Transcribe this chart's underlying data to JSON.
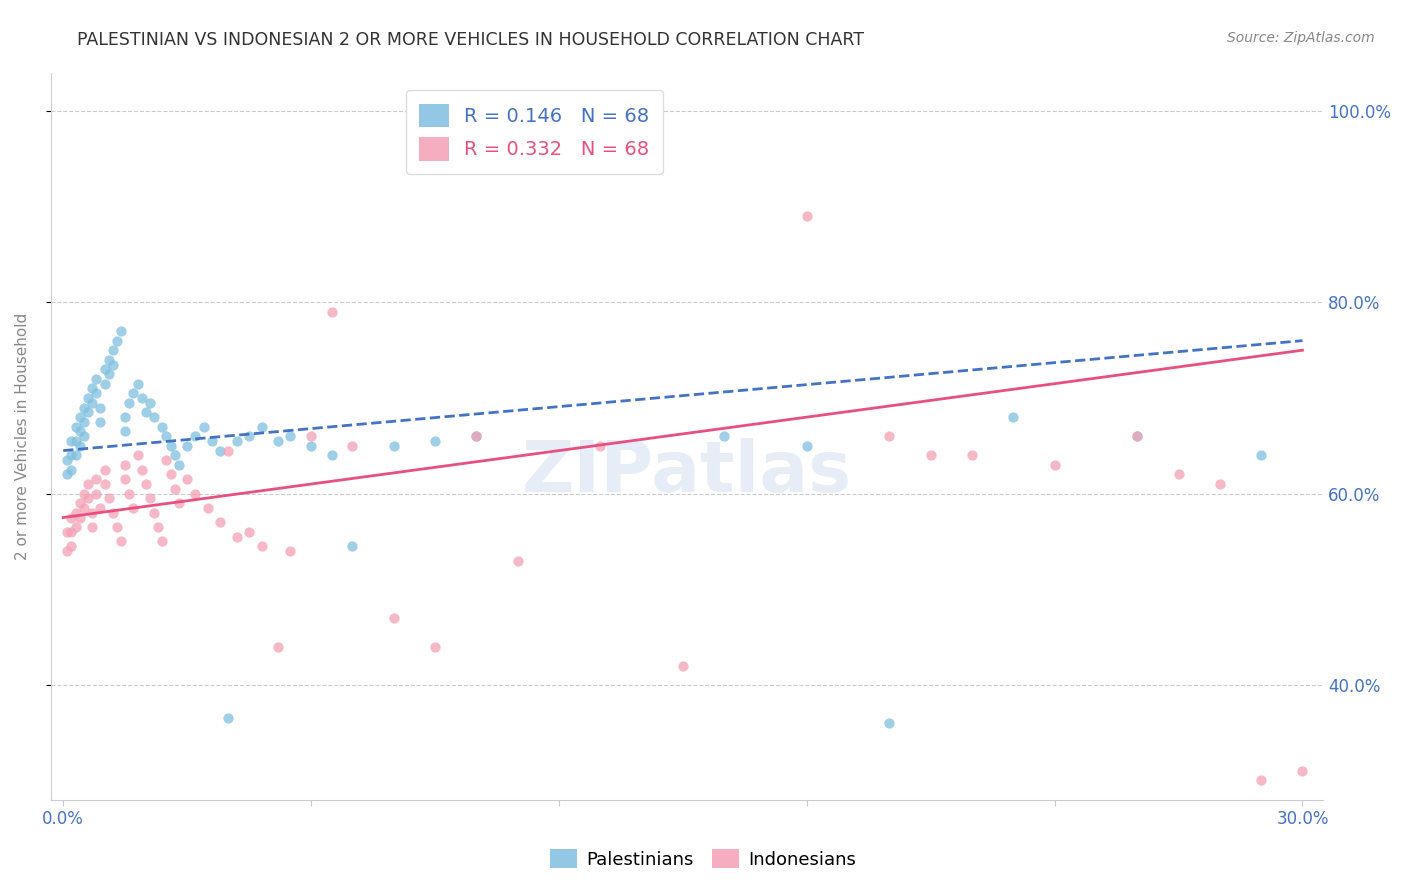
{
  "title": "PALESTINIAN VS INDONESIAN 2 OR MORE VEHICLES IN HOUSEHOLD CORRELATION CHART",
  "source": "Source: ZipAtlas.com",
  "ylabel": "2 or more Vehicles in Household",
  "R_palestinian": 0.146,
  "N_palestinian": 68,
  "R_indonesian": 0.332,
  "N_indonesian": 68,
  "color_palestinian": "#7fbfdf",
  "color_indonesian": "#f4a0b5",
  "color_trendline_pal": "#4472c4",
  "color_trendline_ind": "#e85080",
  "watermark": "ZIPatlas",
  "pal_x": [
    0.001,
    0.001,
    0.002,
    0.002,
    0.002,
    0.003,
    0.003,
    0.003,
    0.004,
    0.004,
    0.004,
    0.005,
    0.005,
    0.005,
    0.006,
    0.006,
    0.007,
    0.007,
    0.008,
    0.008,
    0.009,
    0.009,
    0.01,
    0.01,
    0.011,
    0.011,
    0.012,
    0.012,
    0.013,
    0.014,
    0.015,
    0.015,
    0.016,
    0.017,
    0.018,
    0.019,
    0.02,
    0.021,
    0.022,
    0.024,
    0.025,
    0.026,
    0.027,
    0.028,
    0.03,
    0.032,
    0.034,
    0.036,
    0.038,
    0.04,
    0.042,
    0.045,
    0.048,
    0.052,
    0.055,
    0.06,
    0.065,
    0.07,
    0.08,
    0.09,
    0.1,
    0.12,
    0.16,
    0.18,
    0.2,
    0.23,
    0.26,
    0.29
  ],
  "pal_y": [
    0.635,
    0.62,
    0.655,
    0.64,
    0.625,
    0.67,
    0.655,
    0.64,
    0.68,
    0.665,
    0.65,
    0.69,
    0.675,
    0.66,
    0.7,
    0.685,
    0.71,
    0.695,
    0.72,
    0.705,
    0.69,
    0.675,
    0.73,
    0.715,
    0.74,
    0.725,
    0.75,
    0.735,
    0.76,
    0.77,
    0.68,
    0.665,
    0.695,
    0.705,
    0.715,
    0.7,
    0.685,
    0.695,
    0.68,
    0.67,
    0.66,
    0.65,
    0.64,
    0.63,
    0.65,
    0.66,
    0.67,
    0.655,
    0.645,
    0.365,
    0.655,
    0.66,
    0.67,
    0.655,
    0.66,
    0.65,
    0.64,
    0.545,
    0.65,
    0.655,
    0.66,
    0.975,
    0.66,
    0.65,
    0.36,
    0.68,
    0.66,
    0.64
  ],
  "ind_x": [
    0.001,
    0.001,
    0.002,
    0.002,
    0.002,
    0.003,
    0.003,
    0.004,
    0.004,
    0.005,
    0.005,
    0.006,
    0.006,
    0.007,
    0.007,
    0.008,
    0.008,
    0.009,
    0.01,
    0.01,
    0.011,
    0.012,
    0.013,
    0.014,
    0.015,
    0.015,
    0.016,
    0.017,
    0.018,
    0.019,
    0.02,
    0.021,
    0.022,
    0.023,
    0.024,
    0.025,
    0.026,
    0.027,
    0.028,
    0.03,
    0.032,
    0.035,
    0.038,
    0.04,
    0.042,
    0.045,
    0.048,
    0.052,
    0.055,
    0.06,
    0.065,
    0.07,
    0.08,
    0.09,
    0.1,
    0.11,
    0.13,
    0.15,
    0.18,
    0.2,
    0.21,
    0.22,
    0.24,
    0.26,
    0.27,
    0.28,
    0.29,
    0.3
  ],
  "ind_y": [
    0.56,
    0.54,
    0.575,
    0.56,
    0.545,
    0.58,
    0.565,
    0.59,
    0.575,
    0.6,
    0.585,
    0.61,
    0.595,
    0.58,
    0.565,
    0.615,
    0.6,
    0.585,
    0.625,
    0.61,
    0.595,
    0.58,
    0.565,
    0.55,
    0.63,
    0.615,
    0.6,
    0.585,
    0.64,
    0.625,
    0.61,
    0.595,
    0.58,
    0.565,
    0.55,
    0.635,
    0.62,
    0.605,
    0.59,
    0.615,
    0.6,
    0.585,
    0.57,
    0.645,
    0.555,
    0.56,
    0.545,
    0.44,
    0.54,
    0.66,
    0.79,
    0.65,
    0.47,
    0.44,
    0.66,
    0.53,
    0.65,
    0.42,
    0.89,
    0.66,
    0.64,
    0.64,
    0.63,
    0.66,
    0.62,
    0.61,
    0.3,
    0.31
  ],
  "xlim": [
    -0.003,
    0.305
  ],
  "ylim": [
    0.28,
    1.04
  ],
  "xticks": [
    0.0,
    0.06,
    0.12,
    0.18,
    0.24,
    0.3
  ],
  "yticks": [
    0.4,
    0.6,
    0.8,
    1.0
  ],
  "xtick_labels": [
    "0.0%",
    "",
    "",
    "",
    "",
    "30.0%"
  ],
  "ytick_labels_right": [
    "40.0%",
    "60.0%",
    "80.0%",
    "100.0%"
  ]
}
